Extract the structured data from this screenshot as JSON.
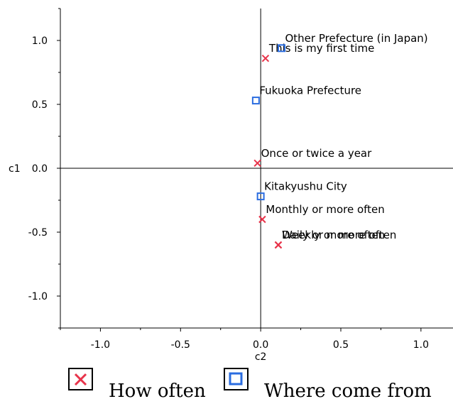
{
  "chart_data": {
    "type": "scatter",
    "xlabel": "c2",
    "ylabel": "c1",
    "xlim": [
      -1.25,
      1.2
    ],
    "ylim": [
      -1.25,
      1.25
    ],
    "xticks": [
      -1.0,
      -0.5,
      0.0,
      0.5,
      1.0
    ],
    "xtick_labels": [
      "-1.0",
      "-0.5",
      "0.0",
      "0.5",
      "1.0"
    ],
    "yticks": [
      1.0,
      0.5,
      0.0,
      -0.5,
      -1.0
    ],
    "ytick_labels": [
      "1.0",
      "0.5",
      "0.0",
      "-0.5",
      "-1.0"
    ],
    "reference_lines": {
      "x": 0,
      "y": 0
    },
    "grid": false,
    "legend_position": "bottom",
    "series": [
      {
        "name": "How often",
        "marker": "x",
        "color": "#e8334a",
        "points": [
          {
            "label": "This is my first time",
            "x": 0.03,
            "y": 0.86
          },
          {
            "label": "Once or twice a year",
            "x": -0.02,
            "y": 0.04
          },
          {
            "label": "Monthly or more often",
            "x": 0.01,
            "y": -0.4
          },
          {
            "label": "Weekly or more often",
            "x": 0.11,
            "y": -0.6
          },
          {
            "label": "Daily or more often",
            "x": 0.11,
            "y": -0.6
          }
        ]
      },
      {
        "name": "Where come from",
        "marker": "square",
        "color": "#2b6de0",
        "points": [
          {
            "label": "Other Prefecture (in Japan)",
            "x": 0.13,
            "y": 0.94
          },
          {
            "label": "Fukuoka Prefecture",
            "x": -0.03,
            "y": 0.53
          },
          {
            "label": "Kitakyushu City",
            "x": 0.0,
            "y": -0.22
          }
        ]
      }
    ]
  }
}
